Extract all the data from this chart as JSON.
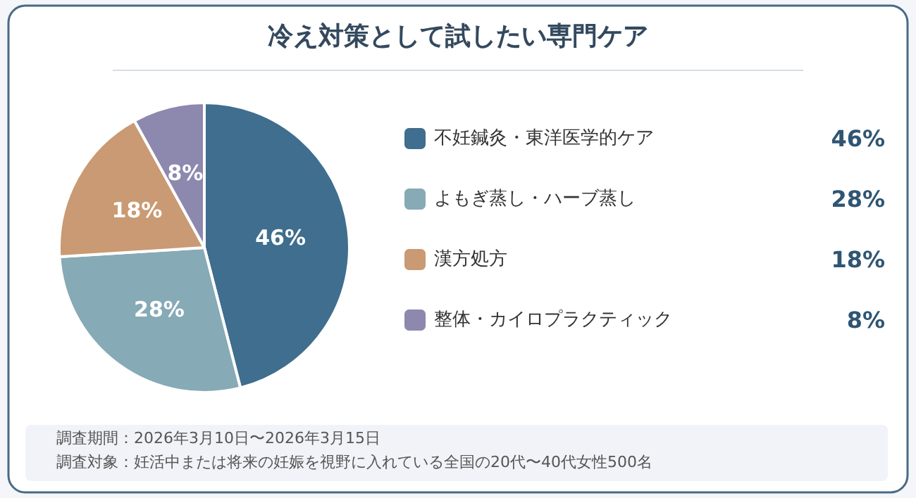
{
  "chart_data": {
    "type": "pie",
    "title": "冷え対策として試したい専門ケア",
    "categories": [
      "不妊鍼灸・東洋医学的ケア",
      "よもぎ蒸し・ハーブ蒸し",
      "漢方処方",
      "整体・カイロプラクティック"
    ],
    "values": [
      46,
      28,
      18,
      8
    ],
    "value_labels": [
      "46%",
      "28%",
      "18%",
      "8%"
    ],
    "colors": [
      "#3f6e8e",
      "#86aab6",
      "#c99a73",
      "#8d88ad"
    ],
    "legend": "right",
    "annotations": [
      "調査期間：2026年3月10日〜2026年3月15日",
      "調査対象：妊活中または将来の妊娠を視野に入れている全国の20代〜40代女性500名"
    ]
  }
}
